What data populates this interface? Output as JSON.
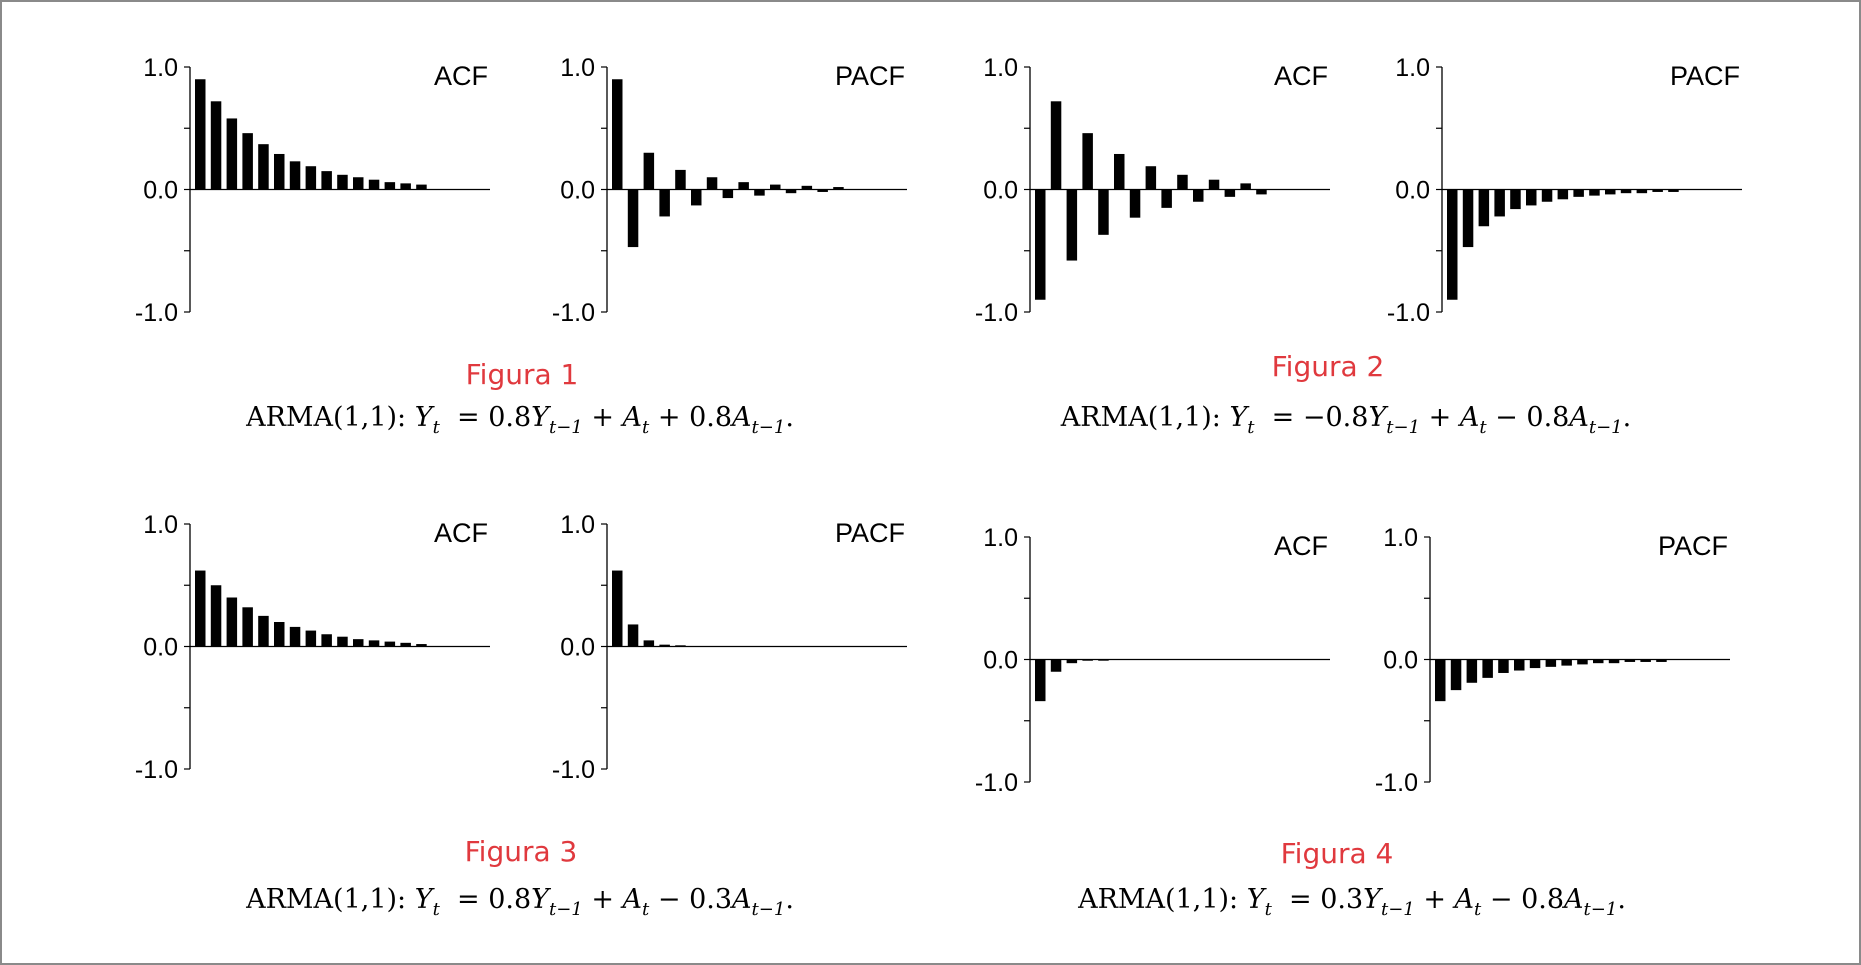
{
  "caption_color": "#e0393e",
  "bar_color": "#000000",
  "figures": [
    {
      "label": "Figura 1",
      "formula": {
        "model": "ARMA(1,1):",
        "phi": "0.8",
        "op": "+",
        "theta": "0.8"
      },
      "formula_text": "ARMA(1,1): Y_t = 0.8Y_{t−1} + A_t + 0.8A_{t−1}."
    },
    {
      "label": "Figura 2",
      "formula": {
        "model": "ARMA(1,1):",
        "phi": "−0.8",
        "op": "−",
        "theta": "0.8"
      },
      "formula_text": "ARMA(1,1): Y_t = −0.8Y_{t−1} + A_t − 0.8A_{t−1}."
    },
    {
      "label": "Figura 3",
      "formula": {
        "model": "ARMA(1,1):",
        "phi": "0.8",
        "op": "−",
        "theta": "0.3"
      },
      "formula_text": "ARMA(1,1): Y_t = 0.8Y_{t−1} + A_t − 0.3A_{t−1}."
    },
    {
      "label": "Figura 4",
      "formula": {
        "model": "ARMA(1,1):",
        "phi": "0.3",
        "op": "−",
        "theta": "0.8"
      },
      "formula_text": "ARMA(1,1): Y_t = 0.3Y_{t−1} + A_t − 0.8A_{t−1}."
    }
  ],
  "chart_data": [
    {
      "type": "bar",
      "figure": "Figura 1",
      "title": "ACF",
      "ylim": [
        -1.0,
        1.0
      ],
      "yticks": [
        "1.0",
        "0.0",
        "-1.0"
      ],
      "values": [
        0.9,
        0.72,
        0.58,
        0.46,
        0.37,
        0.29,
        0.23,
        0.19,
        0.15,
        0.12,
        0.1,
        0.08,
        0.06,
        0.05,
        0.04
      ]
    },
    {
      "type": "bar",
      "figure": "Figura 1",
      "title": "PACF",
      "ylim": [
        -1.0,
        1.0
      ],
      "yticks": [
        "1.0",
        "0.0",
        "-1.0"
      ],
      "values": [
        0.9,
        -0.47,
        0.3,
        -0.22,
        0.16,
        -0.13,
        0.1,
        -0.07,
        0.06,
        -0.05,
        0.04,
        -0.03,
        0.03,
        -0.02,
        0.02
      ]
    },
    {
      "type": "bar",
      "figure": "Figura 2",
      "title": "ACF",
      "ylim": [
        -1.0,
        1.0
      ],
      "yticks": [
        "1.0",
        "0.0",
        "-1.0"
      ],
      "values": [
        -0.9,
        0.72,
        -0.58,
        0.46,
        -0.37,
        0.29,
        -0.23,
        0.19,
        -0.15,
        0.12,
        -0.1,
        0.08,
        -0.06,
        0.05,
        -0.04
      ]
    },
    {
      "type": "bar",
      "figure": "Figura 2",
      "title": "PACF",
      "ylim": [
        -1.0,
        1.0
      ],
      "yticks": [
        "1.0",
        "0.0",
        "-1.0"
      ],
      "values": [
        -0.9,
        -0.47,
        -0.3,
        -0.22,
        -0.16,
        -0.13,
        -0.1,
        -0.08,
        -0.06,
        -0.05,
        -0.04,
        -0.03,
        -0.03,
        -0.02,
        -0.02
      ]
    },
    {
      "type": "bar",
      "figure": "Figura 3",
      "title": "ACF",
      "ylim": [
        -1.0,
        1.0
      ],
      "yticks": [
        "1.0",
        "0.0",
        "-1.0"
      ],
      "values": [
        0.62,
        0.5,
        0.4,
        0.32,
        0.25,
        0.2,
        0.16,
        0.13,
        0.1,
        0.08,
        0.06,
        0.05,
        0.04,
        0.03,
        0.02
      ]
    },
    {
      "type": "bar",
      "figure": "Figura 3",
      "title": "PACF",
      "ylim": [
        -1.0,
        1.0
      ],
      "yticks": [
        "1.0",
        "0.0",
        "-1.0"
      ],
      "values": [
        0.62,
        0.18,
        0.05,
        0.015,
        0.005,
        0,
        0,
        0,
        0,
        0,
        0,
        0,
        0,
        0,
        0
      ]
    },
    {
      "type": "bar",
      "figure": "Figura 4",
      "title": "ACF",
      "ylim": [
        -1.0,
        1.0
      ],
      "yticks": [
        "1.0",
        "0.0",
        "-1.0"
      ],
      "values": [
        -0.34,
        -0.1,
        -0.03,
        -0.01,
        -0.003,
        0,
        0,
        0,
        0,
        0,
        0,
        0,
        0,
        0,
        0
      ]
    },
    {
      "type": "bar",
      "figure": "Figura 4",
      "title": "PACF",
      "ylim": [
        -1.0,
        1.0
      ],
      "yticks": [
        "1.0",
        "0.0",
        "-1.0"
      ],
      "values": [
        -0.34,
        -0.25,
        -0.19,
        -0.15,
        -0.11,
        -0.09,
        -0.07,
        -0.06,
        -0.05,
        -0.04,
        -0.03,
        -0.03,
        -0.02,
        -0.02,
        -0.02
      ]
    }
  ]
}
